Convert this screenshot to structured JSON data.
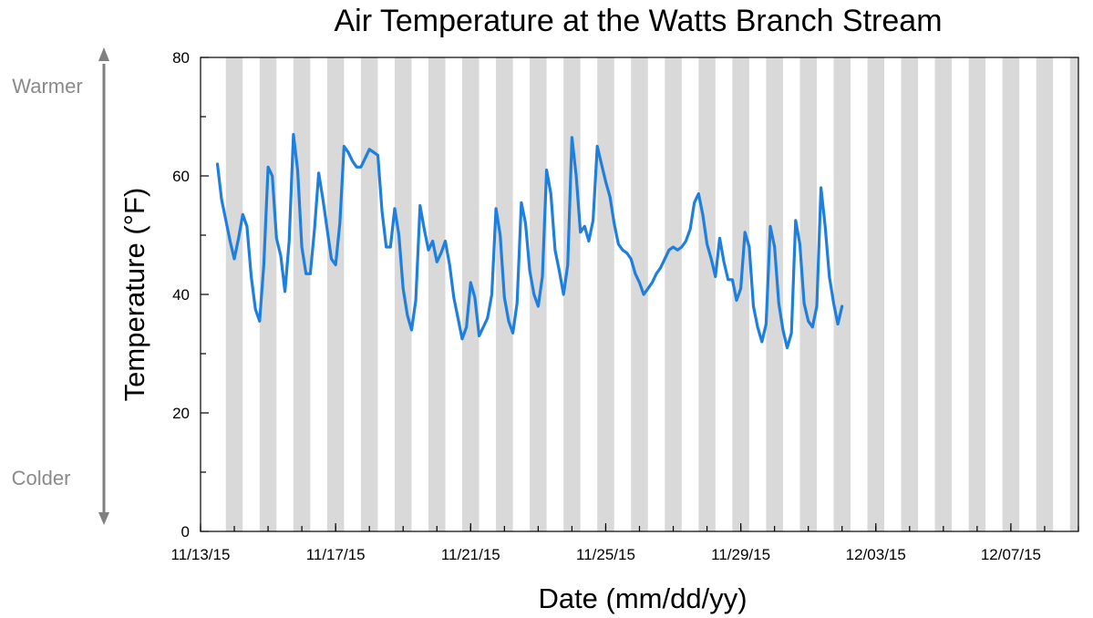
{
  "chart_data": {
    "type": "line",
    "title": "Air Temperature at the Watts Branch Stream",
    "xlabel": "Date (mm/dd/yy)",
    "ylabel": "Temperature (°F)",
    "side_labels": {
      "top": "Warmer",
      "bottom": "Colder"
    },
    "x_range": [
      "11/13/15",
      "12/09/15"
    ],
    "ylim": [
      0,
      80
    ],
    "y_ticks": [
      0,
      20,
      40,
      60,
      80
    ],
    "x_tick_labels": [
      "11/13/15",
      "11/17/15",
      "11/21/15",
      "11/25/15",
      "11/29/15",
      "12/03/15",
      "12/07/15"
    ],
    "night_bands": "shaded vertical band for each night, 11/13/15–12/08/15",
    "colors": {
      "line": "#1f7fdf",
      "band": "#d9d9d9",
      "side_arrow": "#808080"
    },
    "grid": false,
    "legend": "none",
    "series": [
      {
        "points": [
          [
            "11/13/15 12:00",
            62.0
          ],
          [
            "11/13/15 15:00",
            56.0
          ],
          [
            "11/13/15 18:00",
            52.5
          ],
          [
            "11/13/15 21:00",
            49.0
          ],
          [
            "11/14/15 00:00",
            46.0
          ],
          [
            "11/14/15 03:00",
            49.5
          ],
          [
            "11/14/15 06:00",
            53.5
          ],
          [
            "11/14/15 09:00",
            51.5
          ],
          [
            "11/14/15 12:00",
            43.0
          ],
          [
            "11/14/15 15:00",
            37.5
          ],
          [
            "11/14/15 18:00",
            35.5
          ],
          [
            "11/14/15 21:00",
            45.0
          ],
          [
            "11/15/15 00:00",
            61.5
          ],
          [
            "11/15/15 03:00",
            60.0
          ],
          [
            "11/15/15 06:00",
            49.5
          ],
          [
            "11/15/15 09:00",
            46.5
          ],
          [
            "11/15/15 12:00",
            40.5
          ],
          [
            "11/15/15 15:00",
            49.0
          ],
          [
            "11/15/15 18:00",
            67.0
          ],
          [
            "11/15/15 21:00",
            61.0
          ],
          [
            "11/16/15 00:00",
            48.0
          ],
          [
            "11/16/15 03:00",
            43.5
          ],
          [
            "11/16/15 06:00",
            43.5
          ],
          [
            "11/16/15 09:00",
            51.0
          ],
          [
            "11/16/15 12:00",
            60.5
          ],
          [
            "11/16/15 15:00",
            56.0
          ],
          [
            "11/16/15 18:00",
            51.0
          ],
          [
            "11/16/15 21:00",
            46.0
          ],
          [
            "11/17/15 00:00",
            45.0
          ],
          [
            "11/17/15 03:00",
            52.0
          ],
          [
            "11/17/15 06:00",
            65.0
          ],
          [
            "11/17/15 09:00",
            64.0
          ],
          [
            "11/17/15 12:00",
            62.5
          ],
          [
            "11/17/15 15:00",
            61.5
          ],
          [
            "11/17/15 18:00",
            61.5
          ],
          [
            "11/17/15 21:00",
            63.0
          ],
          [
            "11/18/15 00:00",
            64.5
          ],
          [
            "11/18/15 03:00",
            64.0
          ],
          [
            "11/18/15 06:00",
            63.5
          ],
          [
            "11/18/15 09:00",
            54.0
          ],
          [
            "11/18/15 12:00",
            48.0
          ],
          [
            "11/18/15 15:00",
            48.0
          ],
          [
            "11/18/15 18:00",
            54.5
          ],
          [
            "11/18/15 21:00",
            50.0
          ],
          [
            "11/19/15 00:00",
            41.0
          ],
          [
            "11/19/15 03:00",
            36.5
          ],
          [
            "11/19/15 06:00",
            34.0
          ],
          [
            "11/19/15 09:00",
            39.0
          ],
          [
            "11/19/15 12:00",
            55.0
          ],
          [
            "11/19/15 15:00",
            51.0
          ],
          [
            "11/19/15 18:00",
            47.5
          ],
          [
            "11/19/15 21:00",
            49.0
          ],
          [
            "11/20/15 00:00",
            45.5
          ],
          [
            "11/20/15 03:00",
            47.0
          ],
          [
            "11/20/15 06:00",
            49.0
          ],
          [
            "11/20/15 09:00",
            45.0
          ],
          [
            "11/20/15 12:00",
            39.5
          ],
          [
            "11/20/15 15:00",
            36.0
          ],
          [
            "11/20/15 18:00",
            32.5
          ],
          [
            "11/20/15 21:00",
            34.5
          ],
          [
            "11/21/15 00:00",
            42.0
          ],
          [
            "11/21/15 03:00",
            39.5
          ],
          [
            "11/21/15 06:00",
            33.0
          ],
          [
            "11/21/15 09:00",
            34.5
          ],
          [
            "11/21/15 12:00",
            36.0
          ],
          [
            "11/21/15 15:00",
            40.0
          ],
          [
            "11/21/15 18:00",
            54.5
          ],
          [
            "11/21/15 21:00",
            50.0
          ],
          [
            "11/22/15 00:00",
            39.5
          ],
          [
            "11/22/15 03:00",
            35.5
          ],
          [
            "11/22/15 06:00",
            33.5
          ],
          [
            "11/22/15 09:00",
            38.5
          ],
          [
            "11/22/15 12:00",
            55.5
          ],
          [
            "11/22/15 15:00",
            52.0
          ],
          [
            "11/22/15 18:00",
            44.0
          ],
          [
            "11/22/15 21:00",
            40.0
          ],
          [
            "11/23/15 00:00",
            38.0
          ],
          [
            "11/23/15 03:00",
            43.0
          ],
          [
            "11/23/15 06:00",
            61.0
          ],
          [
            "11/23/15 09:00",
            57.0
          ],
          [
            "11/23/15 12:00",
            47.5
          ],
          [
            "11/23/15 15:00",
            44.0
          ],
          [
            "11/23/15 18:00",
            40.0
          ],
          [
            "11/23/15 21:00",
            45.0
          ],
          [
            "11/24/15 00:00",
            66.5
          ],
          [
            "11/24/15 03:00",
            60.0
          ],
          [
            "11/24/15 06:00",
            50.5
          ],
          [
            "11/24/15 09:00",
            51.5
          ],
          [
            "11/24/15 12:00",
            49.0
          ],
          [
            "11/24/15 15:00",
            52.5
          ],
          [
            "11/24/15 18:00",
            65.0
          ],
          [
            "11/24/15 21:00",
            62.0
          ],
          [
            "11/25/15 00:00",
            59.0
          ],
          [
            "11/25/15 03:00",
            56.5
          ],
          [
            "11/25/15 06:00",
            52.0
          ],
          [
            "11/25/15 09:00",
            48.5
          ],
          [
            "11/25/15 12:00",
            47.5
          ],
          [
            "11/25/15 15:00",
            47.0
          ],
          [
            "11/25/15 18:00",
            46.0
          ],
          [
            "11/25/15 21:00",
            43.5
          ],
          [
            "11/26/15 00:00",
            42.0
          ],
          [
            "11/26/15 03:00",
            40.0
          ],
          [
            "11/26/15 06:00",
            41.0
          ],
          [
            "11/26/15 09:00",
            42.0
          ],
          [
            "11/26/15 12:00",
            43.5
          ],
          [
            "11/26/15 15:00",
            44.5
          ],
          [
            "11/26/15 18:00",
            46.0
          ],
          [
            "11/26/15 21:00",
            47.5
          ],
          [
            "11/27/15 00:00",
            48.0
          ],
          [
            "11/27/15 03:00",
            47.5
          ],
          [
            "11/27/15 06:00",
            48.0
          ],
          [
            "11/27/15 09:00",
            49.0
          ],
          [
            "11/27/15 12:00",
            51.0
          ],
          [
            "11/27/15 15:00",
            55.5
          ],
          [
            "11/27/15 18:00",
            57.0
          ],
          [
            "11/27/15 21:00",
            53.5
          ],
          [
            "11/28/15 00:00",
            48.5
          ],
          [
            "11/28/15 03:00",
            46.0
          ],
          [
            "11/28/15 06:00",
            43.0
          ],
          [
            "11/28/15 09:00",
            49.5
          ],
          [
            "11/28/15 12:00",
            45.5
          ],
          [
            "11/28/15 15:00",
            42.5
          ],
          [
            "11/28/15 18:00",
            42.5
          ],
          [
            "11/28/15 21:00",
            39.0
          ],
          [
            "11/29/15 00:00",
            41.0
          ],
          [
            "11/29/15 03:00",
            50.5
          ],
          [
            "11/29/15 06:00",
            48.0
          ],
          [
            "11/29/15 09:00",
            38.0
          ],
          [
            "11/29/15 12:00",
            34.5
          ],
          [
            "11/29/15 15:00",
            32.0
          ],
          [
            "11/29/15 18:00",
            35.0
          ],
          [
            "11/29/15 21:00",
            51.5
          ],
          [
            "11/30/15 00:00",
            48.0
          ],
          [
            "11/30/15 03:00",
            38.5
          ],
          [
            "11/30/15 06:00",
            34.0
          ],
          [
            "11/30/15 09:00",
            31.0
          ],
          [
            "11/30/15 12:00",
            33.5
          ],
          [
            "11/30/15 15:00",
            52.5
          ],
          [
            "11/30/15 18:00",
            48.5
          ],
          [
            "11/30/15 21:00",
            38.5
          ],
          [
            "12/01/15 00:00",
            35.5
          ],
          [
            "12/01/15 03:00",
            34.5
          ],
          [
            "12/01/15 06:00",
            38.0
          ],
          [
            "12/01/15 09:00",
            58.0
          ],
          [
            "12/01/15 12:00",
            51.5
          ],
          [
            "12/01/15 15:00",
            43.0
          ],
          [
            "12/01/15 18:00",
            38.5
          ],
          [
            "12/01/15 21:00",
            35.0
          ],
          [
            "12/02/15 00:00",
            38.0
          ]
        ]
      }
    ]
  }
}
